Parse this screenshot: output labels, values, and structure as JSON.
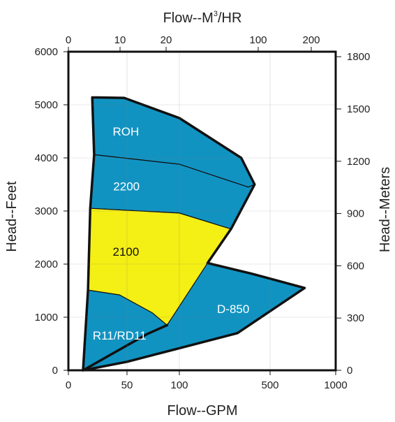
{
  "chart_data": {
    "type": "area",
    "title": "",
    "xlabel_bottom": "Flow--GPM",
    "xlabel_top_prefix": "Flow--M",
    "xlabel_top_sup": "3",
    "xlabel_top_suffix": "/HR",
    "ylabel_left": "Head--Feet",
    "ylabel_right": "Head--Meters",
    "x_scale": "log",
    "xlim": [
      0,
      1000
    ],
    "ylim": [
      0,
      6000
    ],
    "ylim_right": [
      0,
      1828.8
    ],
    "x_ticks_bottom": [
      {
        "label": "0",
        "value": 0
      },
      {
        "label": "50",
        "value": 50
      },
      {
        "label": "100",
        "value": 100
      },
      {
        "label": "500",
        "value": 500
      },
      {
        "label": "1000",
        "value": 1000
      }
    ],
    "x_ticks_top": [
      {
        "label": "0",
        "value": 0
      },
      {
        "label": "10",
        "value": 10
      },
      {
        "label": "20",
        "value": 20
      },
      {
        "label": "100",
        "value": 100
      },
      {
        "label": "200",
        "value": 200
      }
    ],
    "y_ticks_left": [
      0,
      1000,
      2000,
      3000,
      4000,
      5000,
      6000
    ],
    "y_ticks_right": [
      0,
      300,
      600,
      900,
      1200,
      1500,
      1800
    ],
    "colors": {
      "blue": "#1193c2",
      "yellow": "#f4ef14",
      "outline": "#111111"
    },
    "series": [
      {
        "name": "ROH",
        "fill": "blue",
        "label_at": {
          "x": 48,
          "y": 4500
        },
        "points": [
          [
            14,
            5140
          ],
          [
            45,
            5130
          ],
          [
            100,
            4750
          ],
          [
            300,
            4000
          ],
          [
            380,
            3500
          ],
          [
            340,
            3450
          ],
          [
            100,
            3880
          ],
          [
            15,
            4060
          ]
        ]
      },
      {
        "name": "2200",
        "fill": "blue",
        "label_at": {
          "x": 49,
          "y": 3470
        },
        "points": [
          [
            15,
            4060
          ],
          [
            100,
            3880
          ],
          [
            340,
            3450
          ],
          [
            380,
            3500
          ],
          [
            250,
            2660
          ],
          [
            100,
            2960
          ],
          [
            13,
            3050
          ]
        ]
      },
      {
        "name": "2100",
        "fill": "yellow",
        "label_at": {
          "x": 48,
          "y": 2240
        },
        "points": [
          [
            13,
            3050
          ],
          [
            100,
            2960
          ],
          [
            250,
            2660
          ],
          [
            85,
            850
          ],
          [
            70,
            1080
          ],
          [
            38,
            1420
          ],
          [
            12,
            1510
          ]
        ]
      },
      {
        "name": "R11/RD11",
        "fill": "blue",
        "label_at": {
          "x": 38,
          "y": 660
        },
        "points": [
          [
            12,
            1510
          ],
          [
            38,
            1420
          ],
          [
            70,
            1080
          ],
          [
            85,
            850
          ],
          [
            65,
            680
          ],
          [
            10,
            0
          ]
        ]
      },
      {
        "name": "D-850",
        "fill": "blue",
        "label_at": {
          "x": 260,
          "y": 1160
        },
        "points": [
          [
            10,
            0
          ],
          [
            65,
            680
          ],
          [
            85,
            850
          ],
          [
            165,
            2020
          ],
          [
            360,
            1820
          ],
          [
            720,
            1550
          ],
          [
            280,
            700
          ],
          [
            50,
            160
          ]
        ]
      }
    ]
  }
}
